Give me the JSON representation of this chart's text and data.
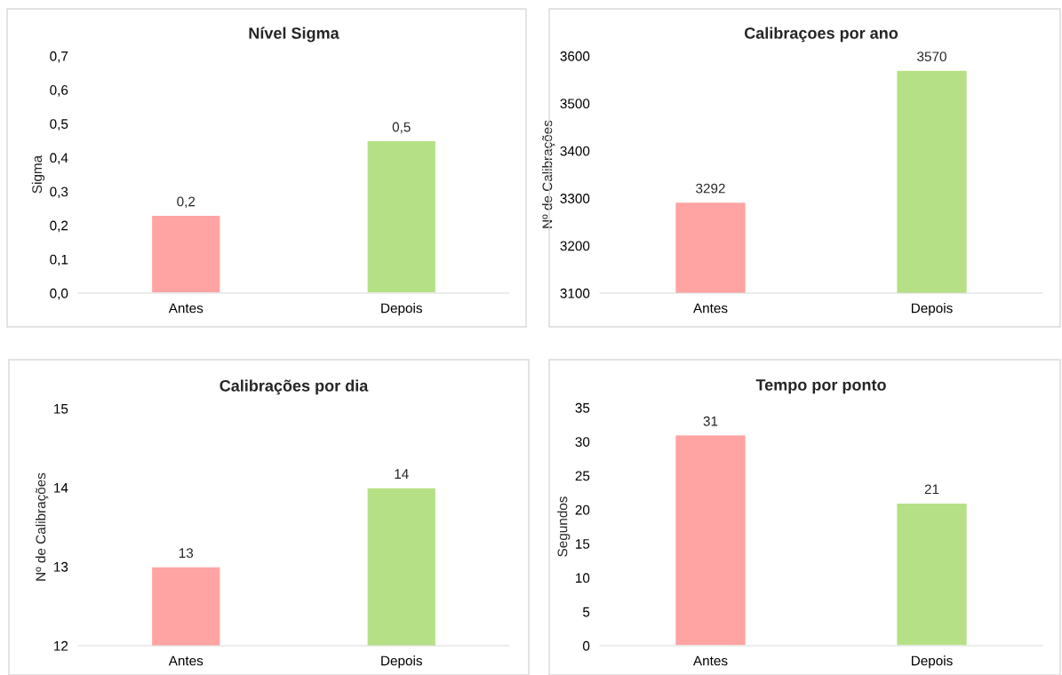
{
  "chart_data": [
    {
      "type": "bar",
      "title": "Nível Sigma",
      "ylabel": "Sigma",
      "categories": [
        "Antes",
        "Depois"
      ],
      "values": [
        0.23,
        0.45
      ],
      "colors": [
        "#ffa3a3",
        "#b6e086"
      ],
      "value_labels": [
        "0,2",
        "0,5"
      ],
      "ylim": [
        0,
        0.7
      ],
      "yticks": [
        {
          "value": 0,
          "label": "0,0"
        },
        {
          "value": 0.1,
          "label": "0,1"
        },
        {
          "value": 0.2,
          "label": "0,2"
        },
        {
          "value": 0.3,
          "label": "0,3"
        },
        {
          "value": 0.4,
          "label": "0,4"
        },
        {
          "value": 0.5,
          "label": "0,5"
        },
        {
          "value": 0.6,
          "label": "0,6"
        },
        {
          "value": 0.7,
          "label": "0,7"
        }
      ],
      "grid": false,
      "legend": false
    },
    {
      "type": "bar",
      "title": "Calibraçoes por ano",
      "ylabel": "Nº de Calibrações",
      "categories": [
        "Antes",
        "Depois"
      ],
      "values": [
        3292,
        3570
      ],
      "colors": [
        "#ffa3a3",
        "#b6e086"
      ],
      "data_labels": true,
      "ylim": [
        3100,
        3600
      ],
      "yticks": [
        3100,
        3200,
        3300,
        3400,
        3500,
        3600
      ],
      "grid": false,
      "legend": false
    },
    {
      "type": "bar",
      "title": "Calibrações por dia",
      "ylabel": "Nº de Calibrações",
      "categories": [
        "Antes",
        "Depois"
      ],
      "values": [
        13,
        14
      ],
      "colors": [
        "#ffa3a3",
        "#b6e086"
      ],
      "data_labels": true,
      "ylim": [
        12,
        15
      ],
      "yticks": [
        12,
        13,
        14,
        15
      ],
      "grid": false,
      "legend": false
    },
    {
      "type": "bar",
      "title": "Tempo por ponto",
      "ylabel": "Segundos",
      "categories": [
        "Antes",
        "Depois"
      ],
      "values": [
        31,
        21
      ],
      "colors": [
        "#ffa3a3",
        "#b6e086"
      ],
      "data_labels": true,
      "ylim": [
        0,
        35
      ],
      "yticks": [
        0,
        5,
        10,
        15,
        20,
        25,
        30,
        35
      ],
      "grid": false,
      "legend": false
    }
  ]
}
